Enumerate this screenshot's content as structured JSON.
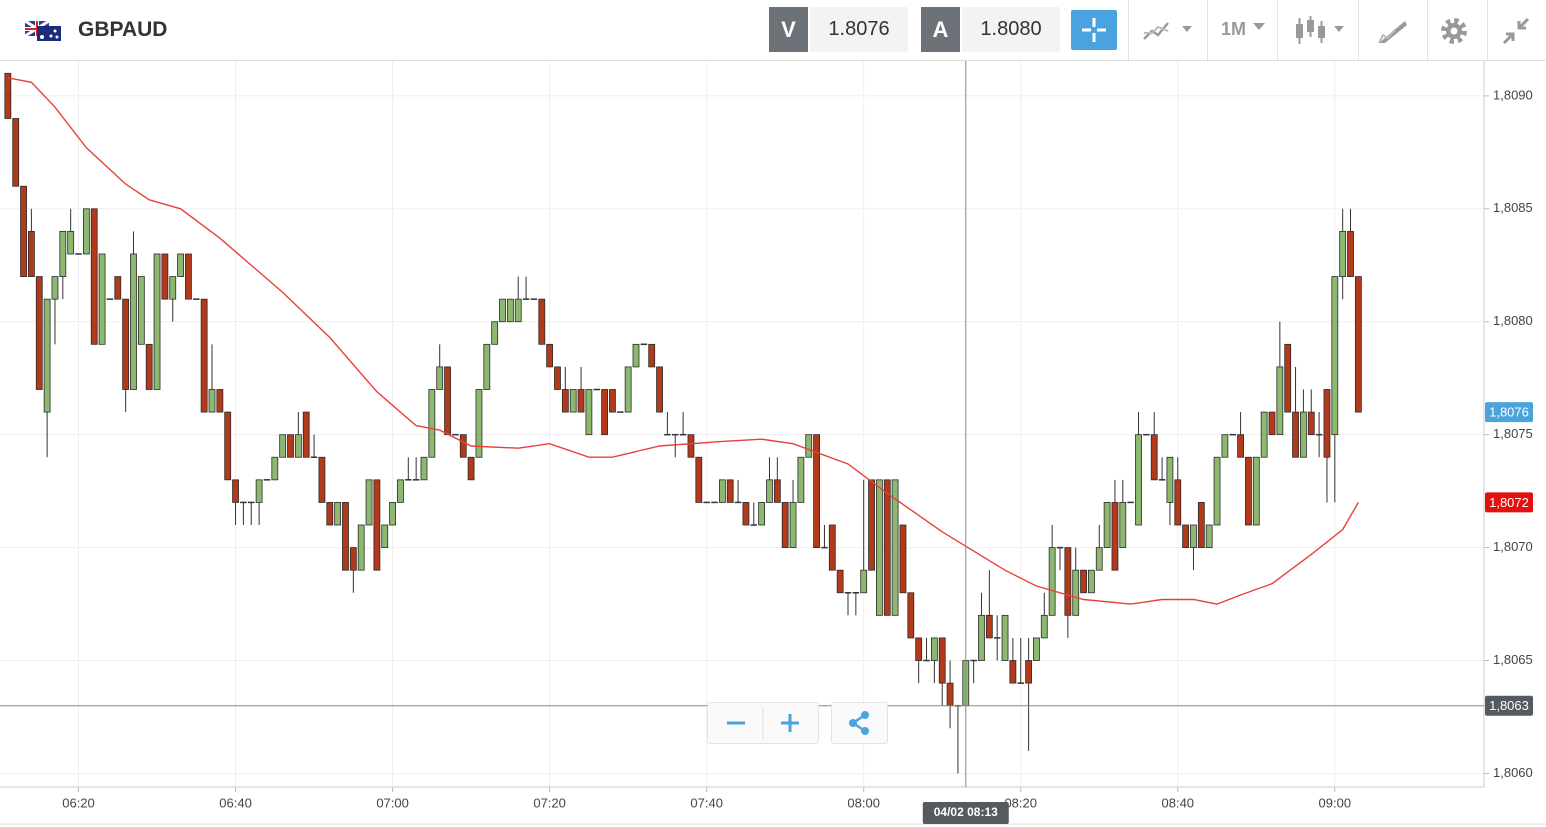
{
  "toolbar": {
    "symbol": "GBPAUD",
    "bid_label": "V",
    "bid": "1.8076",
    "ask_label": "A",
    "ask": "1.8080",
    "timeframe": "1M"
  },
  "chart_data": {
    "type": "candlestick",
    "x": [
      "06:11",
      "06:12",
      "06:13",
      "06:14",
      "06:15",
      "06:16",
      "06:17",
      "06:18",
      "06:19",
      "06:20",
      "06:21",
      "06:22",
      "06:23",
      "06:24",
      "06:25",
      "06:26",
      "06:27",
      "06:28",
      "06:29",
      "06:30",
      "06:31",
      "06:32",
      "06:33",
      "06:34",
      "06:35",
      "06:36",
      "06:37",
      "06:38",
      "06:39",
      "06:40",
      "06:41",
      "06:42",
      "06:43",
      "06:44",
      "06:45",
      "06:46",
      "06:47",
      "06:48",
      "06:49",
      "06:50",
      "06:51",
      "06:52",
      "06:53",
      "06:54",
      "06:55",
      "06:56",
      "06:57",
      "06:58",
      "06:59",
      "07:00",
      "07:01",
      "07:02",
      "07:03",
      "07:04",
      "07:05",
      "07:06",
      "07:07",
      "07:08",
      "07:09",
      "07:10",
      "07:11",
      "07:12",
      "07:13",
      "07:14",
      "07:15",
      "07:16",
      "07:17",
      "07:18",
      "07:19",
      "07:20",
      "07:21",
      "07:22",
      "07:23",
      "07:24",
      "07:25",
      "07:26",
      "07:27",
      "07:28",
      "07:29",
      "07:30",
      "07:31",
      "07:32",
      "07:33",
      "07:34",
      "07:35",
      "07:36",
      "07:37",
      "07:38",
      "07:39",
      "07:40",
      "07:41",
      "07:42",
      "07:43",
      "07:44",
      "07:45",
      "07:46",
      "07:47",
      "07:48",
      "07:49",
      "07:50",
      "07:51",
      "07:52",
      "07:53",
      "07:54",
      "07:55",
      "07:56",
      "07:57",
      "07:58",
      "07:59",
      "08:00",
      "08:01",
      "08:02",
      "08:03",
      "08:04",
      "08:05",
      "08:06",
      "08:07",
      "08:08",
      "08:09",
      "08:10",
      "08:11",
      "08:12",
      "08:13",
      "08:14",
      "08:15",
      "08:16",
      "08:17",
      "08:18",
      "08:19",
      "08:20",
      "08:21",
      "08:22",
      "08:23",
      "08:24",
      "08:25",
      "08:26",
      "08:27",
      "08:28",
      "08:29",
      "08:30",
      "08:31",
      "08:32",
      "08:33",
      "08:34",
      "08:35",
      "08:36",
      "08:37",
      "08:38",
      "08:39",
      "08:40",
      "08:41",
      "08:42",
      "08:43",
      "08:44",
      "08:45",
      "08:46",
      "08:47",
      "08:48",
      "08:49",
      "08:50",
      "08:51",
      "08:52",
      "08:53",
      "08:54",
      "08:55",
      "08:56",
      "08:57",
      "08:58",
      "08:59",
      "09:00",
      "09:01",
      "09:02",
      "09:03"
    ],
    "open": [
      1.8091,
      1.8089,
      1.8086,
      1.8084,
      1.8082,
      1.8076,
      1.8081,
      1.8082,
      1.8083,
      1.8083,
      1.8083,
      1.8085,
      1.8079,
      1.8081,
      1.8082,
      1.8081,
      1.8077,
      1.8079,
      1.8079,
      1.8077,
      1.8083,
      1.8081,
      1.8082,
      1.8083,
      1.8081,
      1.8081,
      1.8076,
      1.8077,
      1.8076,
      1.8073,
      1.8072,
      1.8072,
      1.8072,
      1.8073,
      1.8073,
      1.8074,
      1.8075,
      1.8074,
      1.8076,
      1.8074,
      1.8074,
      1.8072,
      1.8071,
      1.8072,
      1.807,
      1.8069,
      1.8071,
      1.8073,
      1.807,
      1.8071,
      1.8072,
      1.8073,
      1.8073,
      1.8073,
      1.8074,
      1.8077,
      1.8078,
      1.8075,
      1.8075,
      1.8074,
      1.8074,
      1.8077,
      1.8079,
      1.808,
      1.808,
      1.808,
      1.8081,
      1.8081,
      1.8081,
      1.8079,
      1.8078,
      1.8077,
      1.8076,
      1.8077,
      1.8075,
      1.8077,
      1.8077,
      1.8077,
      1.8076,
      1.8076,
      1.8078,
      1.8079,
      1.8079,
      1.8078,
      1.8075,
      1.8075,
      1.8075,
      1.8075,
      1.8074,
      1.8072,
      1.8072,
      1.8072,
      1.8073,
      1.8072,
      1.8072,
      1.8071,
      1.8071,
      1.8072,
      1.8073,
      1.8072,
      1.807,
      1.8072,
      1.8074,
      1.8075,
      1.807,
      1.8071,
      1.8069,
      1.8068,
      1.8068,
      1.8068,
      1.8073,
      1.8067,
      1.8073,
      1.8067,
      1.8071,
      1.8068,
      1.8066,
      1.8065,
      1.8065,
      1.8066,
      1.8064,
      1.8063,
      1.8063,
      1.8065,
      1.8065,
      1.8067,
      1.8066,
      1.8065,
      1.8065,
      1.8064,
      1.8065,
      1.8065,
      1.8066,
      1.8067,
      1.807,
      1.807,
      1.8067,
      1.8069,
      1.8068,
      1.8069,
      1.807,
      1.8072,
      1.807,
      1.8072,
      1.8071,
      1.8075,
      1.8075,
      1.8073,
      1.8072,
      1.8073,
      1.8071,
      1.807,
      1.8072,
      1.807,
      1.8071,
      1.8074,
      1.8075,
      1.8075,
      1.8074,
      1.8071,
      1.8074,
      1.8076,
      1.8075,
      1.8079,
      1.8076,
      1.8074,
      1.8076,
      1.8075,
      1.8077,
      1.8075,
      1.8082,
      1.8084,
      1.8082
    ],
    "high": [
      1.8091,
      1.8089,
      1.8086,
      1.8085,
      1.8082,
      1.8081,
      1.8082,
      1.8084,
      1.8085,
      1.8083,
      1.8085,
      1.8085,
      1.8083,
      1.8081,
      1.8082,
      1.8081,
      1.8084,
      1.8082,
      1.8079,
      1.8083,
      1.8083,
      1.8082,
      1.8083,
      1.8083,
      1.8081,
      1.8081,
      1.8079,
      1.8077,
      1.8076,
      1.8073,
      1.8072,
      1.8072,
      1.8073,
      1.8073,
      1.8074,
      1.8075,
      1.8075,
      1.8076,
      1.8076,
      1.8075,
      1.8074,
      1.8072,
      1.8072,
      1.8072,
      1.807,
      1.8071,
      1.8073,
      1.8073,
      1.8071,
      1.8072,
      1.8073,
      1.8074,
      1.8074,
      1.8074,
      1.8077,
      1.8079,
      1.8078,
      1.8075,
      1.8075,
      1.8074,
      1.8077,
      1.8079,
      1.808,
      1.8081,
      1.8081,
      1.8082,
      1.8082,
      1.8081,
      1.8081,
      1.8079,
      1.8078,
      1.8078,
      1.8077,
      1.8078,
      1.8077,
      1.8077,
      1.8077,
      1.8077,
      1.8076,
      1.8078,
      1.8079,
      1.8079,
      1.8079,
      1.8078,
      1.8076,
      1.8075,
      1.8076,
      1.8075,
      1.8074,
      1.8072,
      1.8072,
      1.8073,
      1.8073,
      1.8073,
      1.8072,
      1.8072,
      1.8072,
      1.8074,
      1.8074,
      1.8072,
      1.8073,
      1.8074,
      1.8075,
      1.8075,
      1.8071,
      1.8071,
      1.8069,
      1.8068,
      1.8068,
      1.8073,
      1.8073,
      1.8073,
      1.8073,
      1.8073,
      1.8071,
      1.8068,
      1.8066,
      1.8066,
      1.8066,
      1.8066,
      1.8065,
      1.8063,
      1.8065,
      1.8065,
      1.8068,
      1.8069,
      1.8067,
      1.8067,
      1.8066,
      1.8066,
      1.8066,
      1.8066,
      1.8068,
      1.8071,
      1.807,
      1.807,
      1.807,
      1.8069,
      1.8069,
      1.8071,
      1.8072,
      1.8073,
      1.8073,
      1.8072,
      1.8076,
      1.8075,
      1.8076,
      1.8074,
      1.8074,
      1.8074,
      1.8071,
      1.8071,
      1.8072,
      1.8071,
      1.8074,
      1.8075,
      1.8075,
      1.8076,
      1.8074,
      1.8074,
      1.8076,
      1.8076,
      1.808,
      1.8079,
      1.8078,
      1.8077,
      1.8077,
      1.8076,
      1.8077,
      1.8082,
      1.8085,
      1.8085,
      1.8082
    ],
    "low": [
      1.8089,
      1.8086,
      1.8082,
      1.8082,
      1.8077,
      1.8074,
      1.8079,
      1.8081,
      1.8083,
      1.8083,
      1.8083,
      1.8079,
      1.8079,
      1.8081,
      1.8081,
      1.8076,
      1.8077,
      1.8079,
      1.8077,
      1.8077,
      1.8081,
      1.808,
      1.8082,
      1.8081,
      1.8081,
      1.8076,
      1.8076,
      1.8076,
      1.8073,
      1.8071,
      1.8071,
      1.8071,
      1.8071,
      1.8073,
      1.8073,
      1.8074,
      1.8074,
      1.8074,
      1.8074,
      1.8074,
      1.8072,
      1.8071,
      1.8071,
      1.8069,
      1.8068,
      1.8069,
      1.8071,
      1.8069,
      1.807,
      1.8071,
      1.8072,
      1.8073,
      1.8073,
      1.8073,
      1.8074,
      1.8077,
      1.8075,
      1.8075,
      1.8074,
      1.8073,
      1.8074,
      1.8077,
      1.8079,
      1.808,
      1.808,
      1.808,
      1.8081,
      1.8081,
      1.8079,
      1.8078,
      1.8077,
      1.8076,
      1.8076,
      1.8076,
      1.8075,
      1.8077,
      1.8075,
      1.8076,
      1.8076,
      1.8076,
      1.8078,
      1.8079,
      1.8078,
      1.8076,
      1.8075,
      1.8074,
      1.8075,
      1.8074,
      1.8072,
      1.8072,
      1.8072,
      1.8072,
      1.8072,
      1.8072,
      1.8071,
      1.8071,
      1.8071,
      1.8072,
      1.8072,
      1.807,
      1.807,
      1.8072,
      1.8074,
      1.807,
      1.807,
      1.8069,
      1.8068,
      1.8067,
      1.8067,
      1.8068,
      1.8069,
      1.8067,
      1.8067,
      1.8067,
      1.8068,
      1.8066,
      1.8064,
      1.8065,
      1.8064,
      1.8063,
      1.8062,
      1.806,
      1.8063,
      1.8064,
      1.8065,
      1.8066,
      1.8065,
      1.8065,
      1.8064,
      1.8064,
      1.8061,
      1.8065,
      1.8066,
      1.8067,
      1.8069,
      1.8066,
      1.8067,
      1.8068,
      1.8068,
      1.8069,
      1.807,
      1.8069,
      1.807,
      1.8072,
      1.8071,
      1.8075,
      1.8073,
      1.8073,
      1.8071,
      1.8071,
      1.807,
      1.8069,
      1.807,
      1.807,
      1.8071,
      1.8074,
      1.8075,
      1.8074,
      1.8071,
      1.8071,
      1.8074,
      1.8075,
      1.8075,
      1.8076,
      1.8074,
      1.8074,
      1.8075,
      1.8074,
      1.8072,
      1.8072,
      1.8081,
      1.8082,
      1.8076
    ],
    "close": [
      1.8089,
      1.8086,
      1.8082,
      1.8082,
      1.8077,
      1.8081,
      1.8082,
      1.8084,
      1.8084,
      1.8083,
      1.8085,
      1.8079,
      1.8083,
      1.8081,
      1.8081,
      1.8077,
      1.8083,
      1.8082,
      1.8077,
      1.8083,
      1.8081,
      1.8082,
      1.8083,
      1.8081,
      1.8081,
      1.8076,
      1.8077,
      1.8076,
      1.8073,
      1.8072,
      1.8072,
      1.8072,
      1.8073,
      1.8073,
      1.8074,
      1.8075,
      1.8074,
      1.8075,
      1.8074,
      1.8074,
      1.8072,
      1.8071,
      1.8072,
      1.8069,
      1.8069,
      1.8071,
      1.8073,
      1.8069,
      1.8071,
      1.8072,
      1.8073,
      1.8073,
      1.8073,
      1.8074,
      1.8077,
      1.8078,
      1.8075,
      1.8075,
      1.8074,
      1.8073,
      1.8077,
      1.8079,
      1.808,
      1.8081,
      1.8081,
      1.8081,
      1.8081,
      1.8081,
      1.8079,
      1.8078,
      1.8077,
      1.8076,
      1.8077,
      1.8076,
      1.8077,
      1.8077,
      1.8075,
      1.8076,
      1.8076,
      1.8078,
      1.8079,
      1.8079,
      1.8078,
      1.8076,
      1.8075,
      1.8075,
      1.8075,
      1.8074,
      1.8072,
      1.8072,
      1.8072,
      1.8073,
      1.8072,
      1.8072,
      1.8071,
      1.8071,
      1.8072,
      1.8073,
      1.8072,
      1.807,
      1.8072,
      1.8074,
      1.8075,
      1.807,
      1.807,
      1.8069,
      1.8068,
      1.8068,
      1.8068,
      1.8069,
      1.8069,
      1.8073,
      1.8067,
      1.8073,
      1.8068,
      1.8066,
      1.8065,
      1.8065,
      1.8066,
      1.8064,
      1.8063,
      1.8063,
      1.8065,
      1.8065,
      1.8067,
      1.8066,
      1.8066,
      1.8067,
      1.8064,
      1.8064,
      1.8064,
      1.8066,
      1.8067,
      1.807,
      1.807,
      1.8067,
      1.8069,
      1.8068,
      1.8069,
      1.807,
      1.8072,
      1.8069,
      1.8072,
      1.8072,
      1.8075,
      1.8075,
      1.8073,
      1.8073,
      1.8074,
      1.8071,
      1.807,
      1.8071,
      1.807,
      1.8071,
      1.8074,
      1.8075,
      1.8075,
      1.8074,
      1.8071,
      1.8074,
      1.8076,
      1.8075,
      1.8078,
      1.8076,
      1.8074,
      1.8076,
      1.8075,
      1.8075,
      1.8074,
      1.8082,
      1.8084,
      1.8082,
      1.8076
    ],
    "up_color": "#8db870",
    "down_color": "#b3391b",
    "overlays": [
      {
        "type": "line",
        "color": "#e8403a",
        "x": [
          "06:11",
          "06:14",
          "06:17",
          "06:21",
          "06:26",
          "06:29",
          "06:33",
          "06:38",
          "06:46",
          "06:52",
          "06:58",
          "07:03",
          "07:06",
          "07:10",
          "07:16",
          "07:20",
          "07:25",
          "07:28",
          "07:34",
          "07:42",
          "07:47",
          "07:51",
          "07:58",
          "08:03",
          "08:10",
          "08:18",
          "08:22",
          "08:28",
          "08:34",
          "08:38",
          "08:42",
          "08:45",
          "08:48",
          "08:52",
          "08:57",
          "09:01",
          "09:03"
        ],
        "values": [
          1.80908,
          1.80906,
          1.80895,
          1.80877,
          1.80861,
          1.80854,
          1.8085,
          1.80837,
          1.80813,
          1.80793,
          1.80769,
          1.80754,
          1.80752,
          1.80745,
          1.80744,
          1.80746,
          1.8074,
          1.8074,
          1.80745,
          1.80747,
          1.80748,
          1.80746,
          1.80737,
          1.80724,
          1.80707,
          1.8069,
          1.80683,
          1.80677,
          1.80675,
          1.80677,
          1.80677,
          1.80675,
          1.80679,
          1.80684,
          1.80697,
          1.80708,
          1.8072
        ]
      }
    ],
    "ylim": [
      1.80594,
      1.80915
    ],
    "yticks": [
      {
        "value": 1.806,
        "label": "1,8060"
      },
      {
        "value": 1.8065,
        "label": "1,8065"
      },
      {
        "value": 1.807,
        "label": "1,8070"
      },
      {
        "value": 1.8075,
        "label": "1,8075"
      },
      {
        "value": 1.808,
        "label": "1,8080"
      },
      {
        "value": 1.8085,
        "label": "1,8085"
      },
      {
        "value": 1.809,
        "label": "1,8090"
      }
    ],
    "xlim": [
      "06:10",
      "09:19"
    ],
    "xticks": [
      "06:20",
      "06:40",
      "07:00",
      "07:20",
      "07:40",
      "08:00",
      "08:20",
      "08:40",
      "09:00"
    ],
    "grid": true,
    "last_price": {
      "value": 1.8076,
      "label": "1,8076",
      "color": "#4ba3dd"
    },
    "overlay_last": {
      "value": 1.8072,
      "label": "1,8072",
      "color": "#e4100f"
    },
    "crosshair": {
      "x": "04/02 08:13",
      "y": {
        "value": 1.8063,
        "label": "1,8063"
      },
      "color": "#555a60"
    }
  }
}
